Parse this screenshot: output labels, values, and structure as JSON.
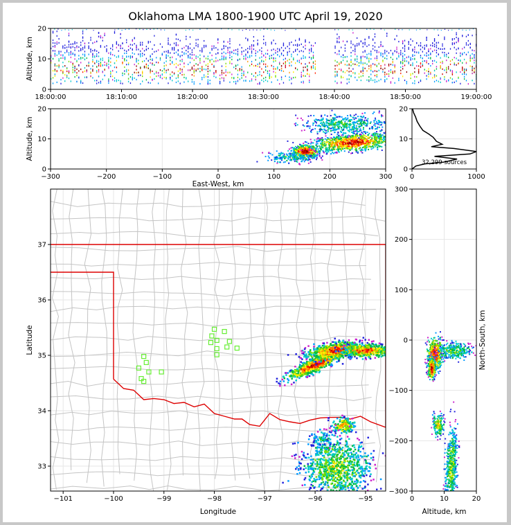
{
  "title": "Oklahoma LMA 1800-1900 UTC April 19, 2020",
  "colors": {
    "state_border": "#dd0000",
    "county_lines": "#c4c4c4",
    "station_markers": "#66ee33",
    "grid": "#e6e6e6"
  },
  "chart_data": [
    {
      "id": "time-height",
      "type": "heatmap",
      "xlabel": "",
      "ylabel": "Altitude, km",
      "x_ticks": [
        "18:00:00",
        "18:10:00",
        "18:20:00",
        "18:30:00",
        "18:40:00",
        "18:50:00",
        "19:00:00"
      ],
      "ylim": [
        0,
        20
      ],
      "y_ticks": [
        0,
        10,
        20
      ]
    },
    {
      "id": "east-west-altitude",
      "type": "heatmap",
      "xlabel": "East-West, km",
      "ylabel": "Altitude, km",
      "xlim": [
        -300,
        300
      ],
      "x_ticks": [
        -300,
        -200,
        -100,
        0,
        100,
        200,
        300
      ],
      "ylim": [
        0,
        20
      ],
      "y_ticks": [
        0,
        10,
        20
      ]
    },
    {
      "id": "altitude-histogram",
      "type": "line",
      "annotation": "32,299 sources",
      "xlim": [
        0,
        1000
      ],
      "x_ticks": [
        0,
        1000
      ],
      "ylim": [
        0,
        20
      ],
      "y_ticks": [
        0,
        10,
        20
      ],
      "profile": [
        [
          2,
          0
        ],
        [
          60,
          1
        ],
        [
          200,
          1.7
        ],
        [
          500,
          2.3
        ],
        [
          700,
          3.3
        ],
        [
          350,
          4.2
        ],
        [
          900,
          5.0
        ],
        [
          1000,
          5.8
        ],
        [
          650,
          6.8
        ],
        [
          300,
          7.4
        ],
        [
          470,
          8.2
        ],
        [
          380,
          9.2
        ],
        [
          330,
          10.5
        ],
        [
          260,
          11.6
        ],
        [
          170,
          12.8
        ],
        [
          120,
          14.3
        ],
        [
          80,
          15.8
        ],
        [
          55,
          17.3
        ],
        [
          25,
          18.7
        ],
        [
          10,
          20
        ]
      ]
    },
    {
      "id": "plan-view",
      "type": "heatmap",
      "xlabel": "Longitude",
      "ylabel": "Latitude",
      "xlim": [
        -101.25,
        -94.6
      ],
      "ylim": [
        32.55,
        38.0
      ],
      "x_ticks": [
        -101,
        -100,
        -99,
        -98,
        -97,
        -96,
        -95
      ],
      "y_ticks": [
        33,
        34,
        35,
        36,
        37
      ]
    },
    {
      "id": "north-south-altitude",
      "type": "heatmap",
      "xlabel": "Altitude, km",
      "ylabel": "North-South, km",
      "xlim": [
        0,
        20
      ],
      "x_ticks": [
        0,
        10,
        20
      ],
      "ylim": [
        -300,
        300
      ],
      "y_ticks": [
        -300,
        -200,
        -100,
        0,
        100,
        200,
        300
      ]
    }
  ]
}
